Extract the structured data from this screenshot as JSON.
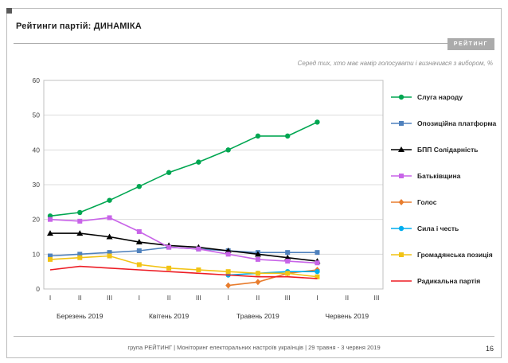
{
  "slide": {
    "title": "Рейтинги партій: ДИНАМІКА",
    "logo": "РЕЙТИНГ",
    "subtitle": "Серед тих, хто має намір голосувати і визначився з вибором, %",
    "footer": "група РЕЙТИНГ | Моніторинг електоральних настроїв українців  | 29 травня - 3 червня 2019",
    "page_number": "16"
  },
  "chart_data": {
    "type": "line",
    "grid": true,
    "legend_position": "right",
    "ylim": [
      0,
      60
    ],
    "yticks": [
      0,
      10,
      20,
      30,
      40,
      50,
      60
    ],
    "x_tick_labels": [
      "I",
      "II",
      "III",
      "I",
      "II",
      "III",
      "I",
      "II",
      "III",
      "I",
      "II",
      "III"
    ],
    "month_labels": [
      "Березень 2019",
      "Квітень 2019",
      "Травень 2019",
      "Червень 2019"
    ],
    "series": [
      {
        "name": "Слуга народу",
        "color": "#00A651",
        "marker": "circle",
        "values": [
          21,
          22,
          25.5,
          29.5,
          33.5,
          36.5,
          40,
          44,
          44,
          48,
          null,
          null
        ]
      },
      {
        "name": "Опозиційна платформа",
        "color": "#4F81BD",
        "marker": "square",
        "values": [
          9.5,
          10,
          10.5,
          11,
          12,
          11.5,
          11,
          10.5,
          10.5,
          10.5,
          null,
          null
        ]
      },
      {
        "name": "БПП Солідарність",
        "color": "#000000",
        "marker": "triangle",
        "values": [
          16,
          16,
          15,
          13.5,
          12.5,
          12,
          11,
          10,
          9,
          8,
          null,
          null
        ]
      },
      {
        "name": "Батьківщина",
        "color": "#C864E8",
        "marker": "square",
        "values": [
          20,
          19.5,
          20.5,
          16.5,
          12,
          11.5,
          10,
          8.5,
          8,
          7.5,
          null,
          null
        ]
      },
      {
        "name": "Голос",
        "color": "#E87D2E",
        "marker": "diamond",
        "values": [
          null,
          null,
          null,
          null,
          null,
          null,
          1,
          2,
          4.5,
          5.5,
          null,
          null
        ]
      },
      {
        "name": "Сила і честь",
        "color": "#00AEEF",
        "marker": "circle",
        "values": [
          null,
          null,
          null,
          null,
          null,
          null,
          4,
          4.5,
          5,
          5,
          null,
          null
        ]
      },
      {
        "name": "Громадянська позиція",
        "color": "#F2C314",
        "marker": "square",
        "values": [
          8.5,
          9,
          9.5,
          7,
          6,
          5.5,
          5,
          4.5,
          4.5,
          3.5,
          null,
          null
        ]
      },
      {
        "name": "Радикальна партія",
        "color": "#ED1C24",
        "marker": "none",
        "values": [
          5.5,
          6.5,
          6,
          5.5,
          5,
          4.5,
          4,
          3.5,
          3.5,
          3,
          null,
          null
        ]
      }
    ]
  }
}
